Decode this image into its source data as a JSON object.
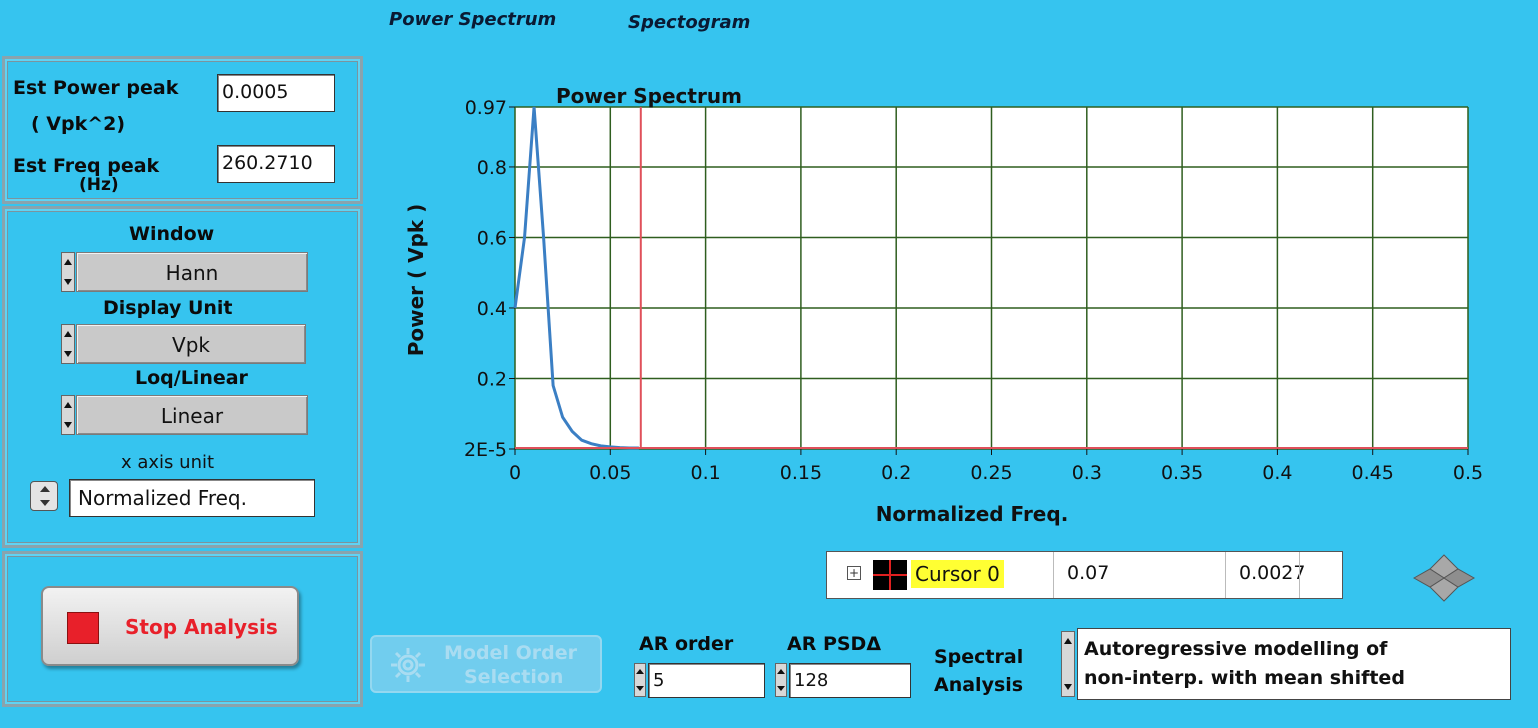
{
  "tabs": [
    {
      "label": "Power Spectrum"
    },
    {
      "label": "Spectogram"
    }
  ],
  "estimates": {
    "power_peak_label_line1": "Est Power peak",
    "power_peak_label_line2": "( Vpk^2)",
    "power_peak_value": "0.0005",
    "freq_peak_label_line1": "Est Freq peak",
    "freq_peak_label_line2": "(Hz)",
    "freq_peak_value": "260.2710"
  },
  "settings": {
    "window_label": "Window",
    "window_value": "Hann",
    "display_unit_label": "Display Unit",
    "display_unit_value": "Vpk",
    "log_linear_label": "Loq/Linear",
    "log_linear_value": "Linear",
    "x_axis_unit_label": "x axis unit",
    "x_axis_unit_value": "Normalized Freq."
  },
  "stop_button": {
    "label": "Stop Analysis"
  },
  "model_order_button": {
    "line1": "Model Order",
    "line2": "Selection"
  },
  "ar_order": {
    "label": "AR order",
    "value": "5"
  },
  "ar_psd": {
    "label": "AR PSDΔ",
    "value": "128"
  },
  "spectral": {
    "label_line1": "Spectral",
    "label_line2": "Analysis",
    "text_line1": "Autoregressive modelling of",
    "text_line2": "non-interp. with mean shifted"
  },
  "cursor_legend": {
    "name": "Cursor 0",
    "x": "0.07",
    "y": "0.0027"
  },
  "colors": {
    "background": "#36c4ef",
    "plot_bg": "#ffffff",
    "grid": "#2f5e1f",
    "series": "#3b7fc4",
    "cursor": "#e0505a",
    "stop_red": "#e8202a"
  },
  "chart_data": {
    "type": "line",
    "title": "Power Spectrum",
    "xlabel": "Normalized Freq.",
    "ylabel": "Power ( Vpk )",
    "xlim": [
      0,
      0.5
    ],
    "x_ticks": [
      "0",
      "0.05",
      "0.1",
      "0.15",
      "0.2",
      "0.25",
      "0.3",
      "0.35",
      "0.4",
      "0.45",
      "0.5"
    ],
    "y_ticks": [
      "0.97",
      "0.8",
      "0.6",
      "0.4",
      "0.2",
      "2E-5"
    ],
    "series": [
      {
        "x": [
          0,
          0.005,
          0.01,
          0.015,
          0.02,
          0.025,
          0.03,
          0.035,
          0.04,
          0.045,
          0.05,
          0.055,
          0.06,
          0.065
        ],
        "y": [
          0.4,
          0.6,
          0.97,
          0.6,
          0.18,
          0.09,
          0.05,
          0.025,
          0.015,
          0.009,
          0.006,
          0.004,
          0.003,
          0.0027
        ]
      }
    ],
    "cursor": {
      "x": 0.066,
      "y": 0.0027
    },
    "grid": true
  }
}
